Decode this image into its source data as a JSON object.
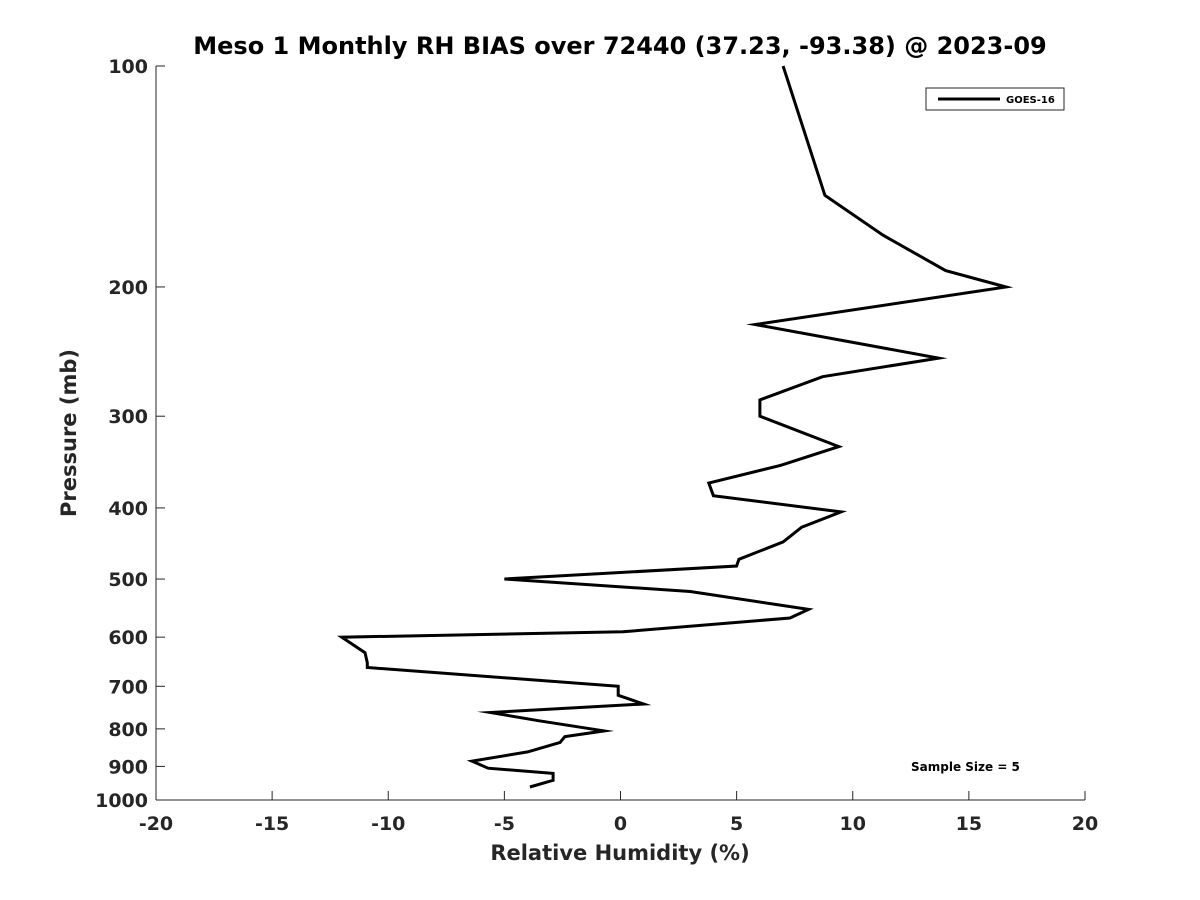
{
  "chart_data": {
    "type": "line",
    "title": "Meso 1 Monthly RH BIAS over 72440 (37.23, -93.38) @ 2023-09",
    "xlabel": "Relative Humidity (%)",
    "ylabel": "Pressure (mb)",
    "xlim": [
      -20,
      20
    ],
    "ylim": [
      100,
      1000
    ],
    "y_scale": "log",
    "y_reversed": true,
    "x_ticks": [
      -20,
      -15,
      -10,
      -5,
      0,
      5,
      10,
      15,
      20
    ],
    "y_ticks": [
      100,
      200,
      300,
      400,
      500,
      600,
      700,
      800,
      900,
      1000
    ],
    "grid": false,
    "legend_position": "top-right",
    "series": [
      {
        "name": "GOES-16",
        "color": "#000000",
        "points": [
          {
            "x": 7.0,
            "p": 100
          },
          {
            "x": 8.8,
            "p": 150
          },
          {
            "x": 11.3,
            "p": 170
          },
          {
            "x": 14.0,
            "p": 190
          },
          {
            "x": 16.6,
            "p": 200
          },
          {
            "x": 5.8,
            "p": 225
          },
          {
            "x": 13.7,
            "p": 250
          },
          {
            "x": 8.7,
            "p": 265
          },
          {
            "x": 6.0,
            "p": 285
          },
          {
            "x": 6.0,
            "p": 300
          },
          {
            "x": 9.4,
            "p": 330
          },
          {
            "x": 6.9,
            "p": 350
          },
          {
            "x": 3.8,
            "p": 370
          },
          {
            "x": 4.0,
            "p": 385
          },
          {
            "x": 9.5,
            "p": 405
          },
          {
            "x": 7.8,
            "p": 425
          },
          {
            "x": 7.0,
            "p": 445
          },
          {
            "x": 5.1,
            "p": 470
          },
          {
            "x": 5.0,
            "p": 480
          },
          {
            "x": -5.0,
            "p": 500
          },
          {
            "x": 3.0,
            "p": 520
          },
          {
            "x": 8.1,
            "p": 550
          },
          {
            "x": 7.3,
            "p": 565
          },
          {
            "x": 0.1,
            "p": 590
          },
          {
            "x": -12.0,
            "p": 600
          },
          {
            "x": -11.0,
            "p": 630
          },
          {
            "x": -10.9,
            "p": 650
          },
          {
            "x": -10.9,
            "p": 660
          },
          {
            "x": -0.1,
            "p": 700
          },
          {
            "x": -0.1,
            "p": 720
          },
          {
            "x": 1.0,
            "p": 740
          },
          {
            "x": -5.6,
            "p": 760
          },
          {
            "x": -3.5,
            "p": 780
          },
          {
            "x": -0.7,
            "p": 805
          },
          {
            "x": -2.4,
            "p": 820
          },
          {
            "x": -2.6,
            "p": 835
          },
          {
            "x": -4.0,
            "p": 860
          },
          {
            "x": -6.4,
            "p": 885
          },
          {
            "x": -5.7,
            "p": 905
          },
          {
            "x": -2.9,
            "p": 920
          },
          {
            "x": -2.9,
            "p": 940
          },
          {
            "x": -3.9,
            "p": 960
          }
        ]
      }
    ],
    "annotations": [
      "Sample Size = 5"
    ]
  }
}
